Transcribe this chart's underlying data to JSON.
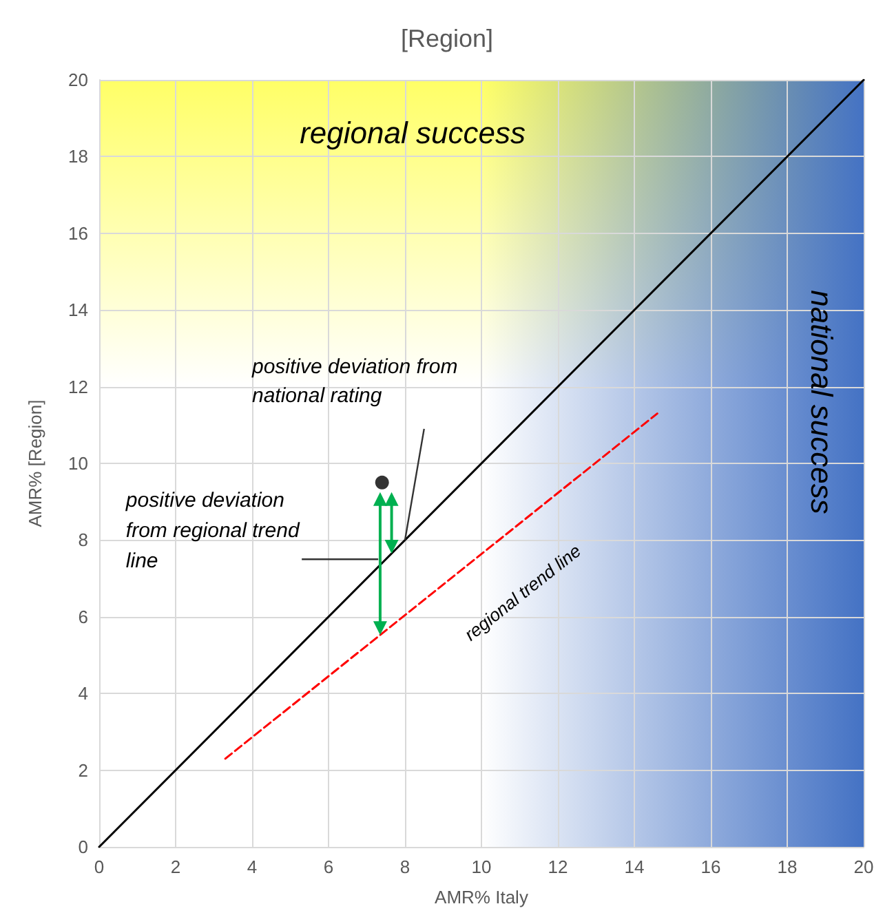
{
  "chart_data": {
    "type": "scatter",
    "title": "[Region]",
    "xlabel": "AMR% Italy",
    "ylabel": "AMR% [Region]",
    "xlim": [
      0,
      20
    ],
    "ylim": [
      0,
      20
    ],
    "xticks": [
      0,
      2,
      4,
      6,
      8,
      10,
      12,
      14,
      16,
      18,
      20
    ],
    "yticks": [
      0,
      2,
      4,
      6,
      8,
      10,
      12,
      14,
      16,
      18,
      20
    ],
    "grid": true,
    "series": [
      {
        "type": "line",
        "color": "#000000",
        "x": [
          0,
          20
        ],
        "values": [
          0,
          20
        ],
        "marker": "none",
        "line_style": "solid"
      },
      {
        "type": "line",
        "color": "#ff0000",
        "x": [
          3.3,
          14.6
        ],
        "values": [
          2.3,
          11.3
        ],
        "marker": "none",
        "line_style": "dashed"
      },
      {
        "color": "#000000",
        "x": [
          7.4
        ],
        "values": [
          9.5
        ],
        "marker": "circle"
      }
    ],
    "annotations": [
      "regional success",
      "national success",
      {
        "text": "positive deviation from national rating",
        "x": 8.0,
        "y": 8.0
      },
      {
        "text": "positive deviation from regional trend line",
        "x": 7.3,
        "y": 7.5
      },
      "regional trend line"
    ]
  }
}
